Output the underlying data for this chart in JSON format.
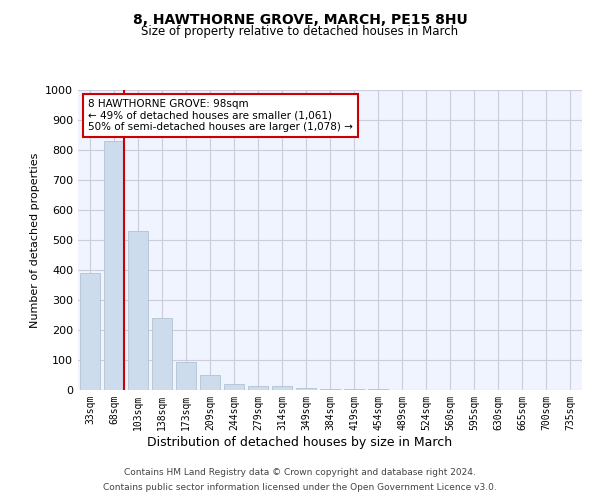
{
  "title1": "8, HAWTHORNE GROVE, MARCH, PE15 8HU",
  "title2": "Size of property relative to detached houses in March",
  "xlabel": "Distribution of detached houses by size in March",
  "ylabel": "Number of detached properties",
  "bar_color": "#cddcec",
  "bar_edge_color": "#aabbcc",
  "bin_labels": [
    "33sqm",
    "68sqm",
    "103sqm",
    "138sqm",
    "173sqm",
    "209sqm",
    "244sqm",
    "279sqm",
    "314sqm",
    "349sqm",
    "384sqm",
    "419sqm",
    "454sqm",
    "489sqm",
    "524sqm",
    "560sqm",
    "595sqm",
    "630sqm",
    "665sqm",
    "700sqm",
    "735sqm"
  ],
  "bar_heights": [
    390,
    830,
    530,
    240,
    95,
    50,
    20,
    15,
    12,
    8,
    5,
    3,
    2,
    1,
    1,
    0,
    0,
    0,
    0,
    0,
    0
  ],
  "ylim": [
    0,
    1000
  ],
  "yticks": [
    0,
    100,
    200,
    300,
    400,
    500,
    600,
    700,
    800,
    900,
    1000
  ],
  "annotation_text": "8 HAWTHORNE GROVE: 98sqm\n← 49% of detached houses are smaller (1,061)\n50% of semi-detached houses are larger (1,078) →",
  "annotation_box_color": "#ffffff",
  "annotation_box_edge_color": "#cc0000",
  "red_line_color": "#cc0000",
  "footer1": "Contains HM Land Registry data © Crown copyright and database right 2024.",
  "footer2": "Contains public sector information licensed under the Open Government Licence v3.0.",
  "background_color": "#ffffff",
  "plot_background_color": "#f0f4ff",
  "grid_color": "#ccccdd"
}
